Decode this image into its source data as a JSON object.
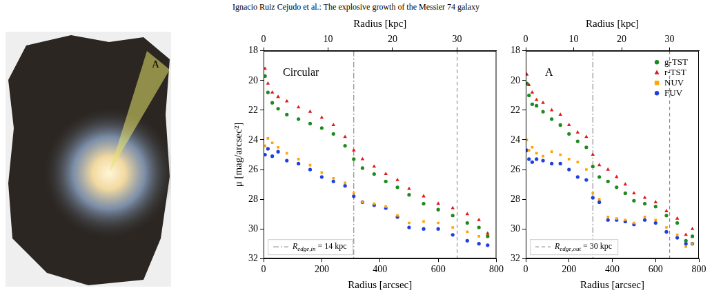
{
  "header": "Ignacio Ruiz Cejudo et al.: The explosive growth of the Messier 74 galaxy",
  "image": {
    "label": "A"
  },
  "chart_data": [
    {
      "type": "scatter",
      "panel_label": "Circular",
      "xlabel": "Radius [arcsec]",
      "x2label": "Radius [kpc]",
      "ylabel": "μ [mag/arcsec²]",
      "xlim": [
        0,
        800
      ],
      "xticks": [
        0,
        200,
        400,
        600,
        800
      ],
      "x2lim": [
        0,
        36.1
      ],
      "x2ticks": [
        0,
        10,
        20,
        30
      ],
      "ylim": [
        32,
        18
      ],
      "yticks": [
        18,
        20,
        22,
        24,
        26,
        28,
        30,
        32
      ],
      "grid": false,
      "x": [
        5,
        15,
        30,
        50,
        80,
        120,
        160,
        200,
        240,
        280,
        310,
        340,
        380,
        420,
        460,
        500,
        550,
        600,
        650,
        700,
        740,
        770
      ],
      "series": [
        {
          "name": "g-TST",
          "color": "#1f8a1f",
          "marker": "circle",
          "values": [
            19.7,
            20.8,
            21.5,
            21.9,
            22.3,
            22.6,
            22.9,
            23.2,
            23.6,
            24.4,
            25.3,
            25.9,
            26.3,
            26.8,
            27.2,
            27.7,
            28.3,
            28.7,
            29.1,
            29.6,
            29.9,
            30.5
          ]
        },
        {
          "name": "r-TST",
          "color": "#e01818",
          "marker": "triangle",
          "values": [
            19.2,
            20.2,
            20.8,
            21.1,
            21.4,
            21.8,
            22.1,
            22.5,
            23.0,
            23.8,
            24.7,
            25.3,
            25.8,
            26.3,
            26.7,
            27.3,
            27.8,
            28.3,
            28.6,
            29.0,
            29.4,
            30.3
          ]
        },
        {
          "name": "NUV",
          "color": "#ffa500",
          "marker": "square",
          "values": [
            24.4,
            23.9,
            24.2,
            24.5,
            24.9,
            25.3,
            25.7,
            26.2,
            26.6,
            26.9,
            27.6,
            28.2,
            28.3,
            28.5,
            29.1,
            29.6,
            29.5,
            29.6,
            29.9,
            30.2,
            30.5,
            30.4
          ]
        },
        {
          "name": "FUV",
          "color": "#1f3fe0",
          "marker": "circle",
          "values": [
            25.0,
            24.6,
            25.1,
            24.8,
            25.4,
            25.6,
            26.0,
            26.5,
            26.8,
            27.1,
            27.8,
            28.2,
            28.4,
            28.6,
            29.2,
            29.9,
            30.0,
            30.0,
            30.4,
            30.8,
            31.0,
            31.1
          ]
        }
      ],
      "vlines": [
        {
          "x": 310,
          "line_style": "dashdot",
          "label": {
            "symbol": "R",
            "subscript": "edge,in",
            "text": "= 14 kpc"
          }
        },
        {
          "x": 665,
          "line_style": "dashed"
        }
      ]
    },
    {
      "type": "scatter",
      "panel_label": "A",
      "xlabel": "Radius [arcsec]",
      "x2label": "Radius [kpc]",
      "xlim": [
        0,
        800
      ],
      "xticks": [
        0,
        200,
        400,
        600,
        800
      ],
      "x2lim": [
        0,
        36.1
      ],
      "x2ticks": [
        0,
        10,
        20,
        30
      ],
      "ylim": [
        32,
        18
      ],
      "yticks": [
        18,
        20,
        22,
        24,
        26,
        28,
        30,
        32
      ],
      "grid": false,
      "legend": "upper right",
      "x": [
        5,
        15,
        30,
        50,
        80,
        120,
        160,
        200,
        240,
        280,
        310,
        340,
        380,
        420,
        460,
        500,
        550,
        600,
        650,
        700,
        740,
        770
      ],
      "series": [
        {
          "name": "g-TST",
          "color": "#1f8a1f",
          "marker": "circle",
          "values": [
            20.2,
            21.0,
            21.6,
            21.7,
            22.1,
            22.6,
            23.0,
            23.6,
            24.1,
            24.5,
            25.8,
            26.5,
            26.8,
            27.2,
            27.6,
            28.1,
            28.3,
            28.5,
            29.1,
            29.6,
            30.8,
            30.5
          ]
        },
        {
          "name": "r-TST",
          "color": "#e01818",
          "marker": "triangle",
          "values": [
            19.6,
            20.3,
            20.8,
            21.3,
            21.5,
            22.0,
            22.3,
            23.0,
            23.5,
            23.8,
            25.0,
            25.7,
            26.0,
            26.5,
            27.0,
            27.6,
            27.9,
            28.2,
            28.8,
            29.3,
            30.4,
            30.0
          ]
        },
        {
          "name": "NUV",
          "color": "#ffa500",
          "marker": "square",
          "values": [
            24.0,
            24.7,
            24.5,
            24.9,
            25.1,
            24.8,
            25.0,
            25.3,
            25.5,
            26.0,
            27.6,
            28.0,
            29.2,
            29.3,
            29.4,
            29.6,
            29.2,
            29.4,
            29.9,
            30.4,
            31.2,
            31.0
          ]
        },
        {
          "name": "FUV",
          "color": "#1f3fe0",
          "marker": "circle",
          "values": [
            24.7,
            25.3,
            25.5,
            25.3,
            25.4,
            25.6,
            25.6,
            26.0,
            26.5,
            26.7,
            27.9,
            28.2,
            29.4,
            29.4,
            29.5,
            29.7,
            29.4,
            29.6,
            30.2,
            30.6,
            31.0,
            31.0
          ]
        }
      ],
      "vlines": [
        {
          "x": 310,
          "line_style": "dashdot"
        },
        {
          "x": 665,
          "line_style": "dashed",
          "label": {
            "symbol": "R",
            "subscript": "edge,out",
            "text": "= 30 kpc"
          }
        }
      ]
    }
  ]
}
